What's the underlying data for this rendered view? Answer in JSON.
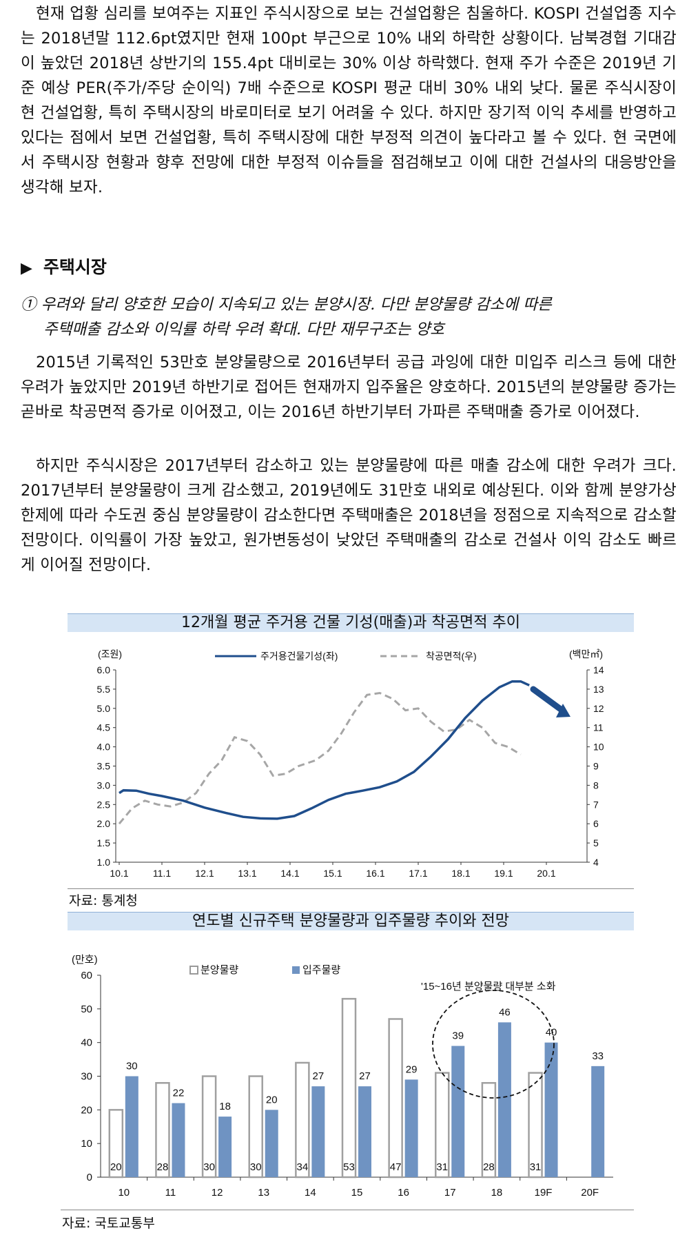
{
  "intro": "현재 업황 심리를 보여주는 지표인 주식시장으로 보는 건설업황은 침울하다. KOSPI 건설업종 지수는 2018년말 112.6pt였지만 현재 100pt 부근으로 10% 내외 하락한 상황이다. 남북경협 기대감이 높았던 2018년 상반기의 155.4pt 대비로는 30% 이상 하락했다. 현재 주가 수준은 2019년 기준 예상 PER(주가/주당 순이익) 7배 수준으로 KOSPI 평균 대비 30% 내외 낮다. 물론 주식시장이 현 건설업황, 특히 주택시장의 바로미터로 보기 어려울 수 있다. 하지만 장기적 이익 추세를 반영하고 있다는 점에서 보면 건설업황, 특히 주택시장에 대한 부정적 의견이 높다라고 볼 수 있다. 현 국면에서 주택시장 현황과 향후 전망에 대한 부정적 이슈들을 점검해보고 이에 대한 건설사의 대응방안을 생각해 보자.",
  "section_title": "주택시장",
  "subheading_line1": "① 우려와 달리 양호한 모습이 지속되고 있는 분양시장. 다만 분양물량 감소에 따른",
  "subheading_line2": "주택매출 감소와 이익률 하락 우려 확대. 다만 재무구조는 양호",
  "para2": "2015년 기록적인 53만호 분양물량으로 2016년부터 공급 과잉에 대한 미입주 리스크 등에 대한 우려가 높았지만 2019년 하반기로 접어든 현재까지 입주율은 양호하다. 2015년의 분양물량 증가는 곧바로 착공면적 증가로 이어졌고, 이는 2016년 하반기부터 가파른 주택매출 증가로 이어졌다.",
  "para3": "하지만 주식시장은 2017년부터 감소하고 있는 분양물량에 따른 매출 감소에 대한 우려가 크다. 2017년부터 분양물량이 크게 감소했고, 2019년에도 31만호 내외로 예상된다. 이와 함께 분양가상한제에 따라 수도권 중심 분양물량이 감소한다면 주택매출은 2018년을 정점으로 지속적으로 감소할 전망이다. 이익률이 가장 높았고, 원가변동성이 낮았던 주택매출의 감소로 건설사 이익 감소도 빠르게 이어질 전망이다.",
  "chart1_title": "12개월 평균 주거용 건물 기성(매출)과 착공면적 추이",
  "chart1_source": "자료: 통계청",
  "chart2_title": "연도별 신규주택 분양물량과 입주물량 추이와 전망",
  "chart2_source": "자료: 국토교통부",
  "colors": {
    "line_blue": "#1f4e8c",
    "dash_gray": "#a6a6a6",
    "bar_blue": "#6f93c2",
    "title_bg": "#d6e5f5"
  },
  "chart_data": [
    {
      "type": "line",
      "title": "12개월 평균 주거용 건물 기성(매출)과 착공면적 추이",
      "ylabel": "(조원)",
      "y2label": "(백만㎡)",
      "ylim": [
        1.0,
        6.0
      ],
      "y2lim": [
        4,
        14
      ],
      "yticks": [
        "6.0",
        "5.5",
        "5.0",
        "4.5",
        "4.0",
        "3.5",
        "3.0",
        "2.5",
        "2.0",
        "1.5",
        "1.0"
      ],
      "y2ticks": [
        "14",
        "13",
        "12",
        "11",
        "10",
        "9",
        "8",
        "7",
        "6",
        "5",
        "4"
      ],
      "xticks": [
        "10.1",
        "11.1",
        "12.1",
        "13.1",
        "14.1",
        "15.1",
        "16.1",
        "17.1",
        "18.1",
        "19.1",
        "20.1"
      ],
      "legend_position": "top",
      "grid": false,
      "series": [
        {
          "name": "주거용건물기성(좌)",
          "axis": "left",
          "style": "solid",
          "points": [
            [
              2010.0,
              2.8
            ],
            [
              2010.1,
              2.87
            ],
            [
              2010.4,
              2.86
            ],
            [
              2010.7,
              2.78
            ],
            [
              2011.0,
              2.72
            ],
            [
              2011.5,
              2.6
            ],
            [
              2012.0,
              2.42
            ],
            [
              2012.5,
              2.28
            ],
            [
              2012.9,
              2.18
            ],
            [
              2013.3,
              2.14
            ],
            [
              2013.7,
              2.13
            ],
            [
              2014.1,
              2.2
            ],
            [
              2014.5,
              2.4
            ],
            [
              2014.9,
              2.62
            ],
            [
              2015.3,
              2.78
            ],
            [
              2015.7,
              2.86
            ],
            [
              2016.1,
              2.95
            ],
            [
              2016.5,
              3.1
            ],
            [
              2016.9,
              3.35
            ],
            [
              2017.3,
              3.75
            ],
            [
              2017.7,
              4.2
            ],
            [
              2018.1,
              4.75
            ],
            [
              2018.5,
              5.2
            ],
            [
              2018.9,
              5.55
            ],
            [
              2019.2,
              5.7
            ],
            [
              2019.4,
              5.7
            ],
            [
              2019.6,
              5.6
            ]
          ]
        },
        {
          "name": "착공면적(우)",
          "axis": "right",
          "style": "dashed",
          "points": [
            [
              2010.0,
              6.0
            ],
            [
              2010.3,
              6.8
            ],
            [
              2010.6,
              7.2
            ],
            [
              2010.9,
              7.0
            ],
            [
              2011.2,
              6.9
            ],
            [
              2011.5,
              7.1
            ],
            [
              2011.8,
              7.6
            ],
            [
              2012.1,
              8.6
            ],
            [
              2012.4,
              9.3
            ],
            [
              2012.7,
              10.5
            ],
            [
              2013.0,
              10.3
            ],
            [
              2013.3,
              9.6
            ],
            [
              2013.6,
              8.5
            ],
            [
              2013.9,
              8.6
            ],
            [
              2014.2,
              9.0
            ],
            [
              2014.6,
              9.3
            ],
            [
              2014.9,
              9.8
            ],
            [
              2015.2,
              10.7
            ],
            [
              2015.5,
              11.8
            ],
            [
              2015.8,
              12.7
            ],
            [
              2016.1,
              12.8
            ],
            [
              2016.4,
              12.5
            ],
            [
              2016.7,
              11.9
            ],
            [
              2017.0,
              12.0
            ],
            [
              2017.3,
              11.3
            ],
            [
              2017.6,
              10.8
            ],
            [
              2017.9,
              10.9
            ],
            [
              2018.2,
              11.4
            ],
            [
              2018.5,
              11.0
            ],
            [
              2018.8,
              10.2
            ],
            [
              2019.1,
              10.0
            ],
            [
              2019.4,
              9.6
            ]
          ]
        }
      ]
    },
    {
      "type": "bar",
      "title": "연도별 신규주택 분양물량과 입주물량 추이와 전망",
      "ylabel": "(만호)",
      "ylim": [
        0,
        60
      ],
      "yticks": [
        "60",
        "50",
        "40",
        "30",
        "20",
        "10",
        "0"
      ],
      "categories": [
        "10",
        "11",
        "12",
        "13",
        "14",
        "15",
        "16",
        "17",
        "18",
        "19F",
        "20F"
      ],
      "legend_position": "top",
      "annotation": "'15~16년 분양물량 대부분 소화",
      "series": [
        {
          "name": "분양물량",
          "style": "outline",
          "values": [
            20,
            28,
            30,
            30,
            34,
            53,
            47,
            31,
            28,
            31,
            null
          ],
          "labels": [
            "20",
            "28",
            "30",
            "30",
            "34",
            "53",
            "47",
            "31",
            "28",
            "31",
            ""
          ]
        },
        {
          "name": "입주물량",
          "style": "filled",
          "values": [
            30,
            22,
            18,
            20,
            27,
            27,
            29,
            39,
            46,
            40,
            33
          ],
          "labels": [
            "30",
            "22",
            "18",
            "20",
            "27",
            "27",
            "29",
            "39",
            "46",
            "40",
            "33"
          ]
        }
      ]
    }
  ]
}
